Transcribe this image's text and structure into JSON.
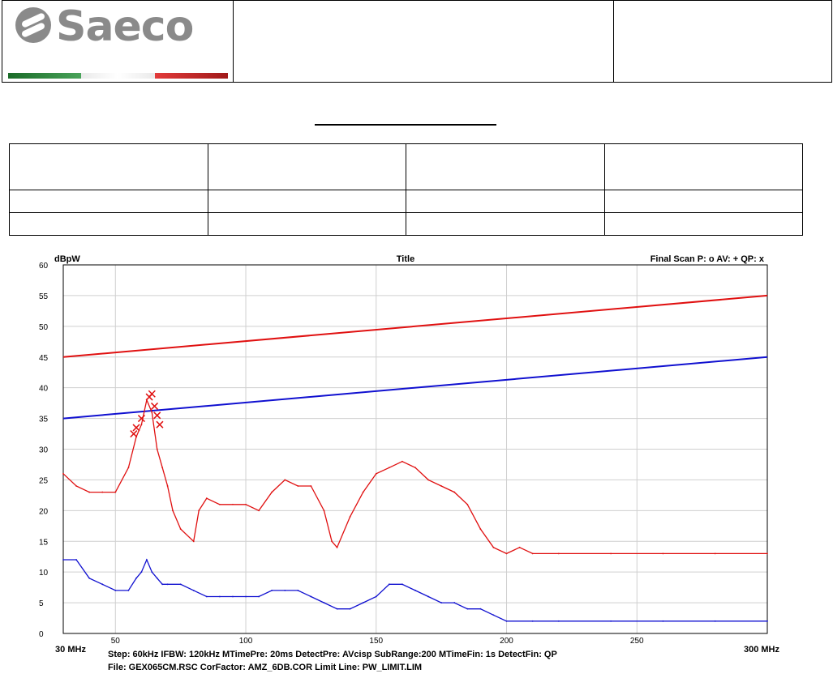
{
  "header": {
    "logo_text": "Saeco",
    "flag_colors": [
      "#2e8b3f",
      "#ffffff",
      "#d42a2a"
    ]
  },
  "info_table": {
    "rows": [
      [
        "",
        "",
        "",
        ""
      ],
      [
        "",
        "",
        "",
        ""
      ],
      [
        "",
        "",
        "",
        ""
      ]
    ]
  },
  "chart_data": {
    "type": "line",
    "title": "Title",
    "ylabel": "dBpW",
    "legend_text": "Final Scan P: o  AV: +  QP: x",
    "xlim": [
      30,
      300
    ],
    "ylim": [
      0,
      60
    ],
    "x_tick_labels": [
      {
        "value": 30,
        "label": "30 MHz"
      },
      {
        "value": 50,
        "label": "50"
      },
      {
        "value": 100,
        "label": "100"
      },
      {
        "value": 150,
        "label": "150"
      },
      {
        "value": 200,
        "label": "200"
      },
      {
        "value": 250,
        "label": "250"
      },
      {
        "value": 300,
        "label": "300 MHz"
      }
    ],
    "y_ticks": [
      0,
      5,
      10,
      15,
      20,
      25,
      30,
      35,
      40,
      45,
      50,
      55,
      60
    ],
    "grid": true,
    "footer_lines": [
      "Step: 60kHz    IFBW: 120kHz    MTimePre: 20ms    DetectPre: AVcisp    SubRange:200    MTimeFin:   1s    DetectFin: QP",
      "File: GEX065CM.RSC  CorFactor: AMZ_6DB.COR      Limit Line: PW_LIMIT.LIM"
    ],
    "limit_lines": [
      {
        "color": "#e01010",
        "x": [
          30,
          300
        ],
        "y": [
          45,
          55
        ]
      },
      {
        "color": "#1010d0",
        "x": [
          30,
          300
        ],
        "y": [
          35,
          45
        ]
      }
    ],
    "series": [
      {
        "color": "#e01010",
        "x": [
          30,
          35,
          40,
          45,
          50,
          55,
          58,
          60,
          62,
          64,
          66,
          68,
          70,
          72,
          75,
          80,
          82,
          85,
          90,
          95,
          100,
          105,
          110,
          115,
          120,
          125,
          130,
          133,
          135,
          140,
          145,
          150,
          155,
          160,
          165,
          170,
          175,
          180,
          185,
          190,
          195,
          200,
          205,
          210,
          220,
          240,
          260,
          280,
          300
        ],
        "y": [
          26,
          24,
          23,
          23,
          23,
          27,
          32,
          34,
          38,
          36,
          30,
          27,
          24,
          20,
          17,
          15,
          20,
          22,
          21,
          21,
          21,
          20,
          23,
          25,
          24,
          24,
          20,
          15,
          14,
          19,
          23,
          26,
          27,
          28,
          27,
          25,
          24,
          23,
          21,
          17,
          14,
          13,
          14,
          13,
          13,
          13,
          13,
          13,
          13
        ]
      },
      {
        "color": "#1010d0",
        "x": [
          30,
          35,
          40,
          45,
          50,
          55,
          58,
          60,
          62,
          64,
          66,
          68,
          70,
          75,
          80,
          85,
          90,
          95,
          100,
          105,
          110,
          115,
          120,
          125,
          130,
          135,
          140,
          145,
          150,
          155,
          160,
          165,
          170,
          175,
          180,
          185,
          190,
          195,
          200,
          210,
          220,
          240,
          260,
          280,
          300
        ],
        "y": [
          12,
          12,
          9,
          8,
          7,
          7,
          9,
          10,
          12,
          10,
          9,
          8,
          8,
          8,
          7,
          6,
          6,
          6,
          6,
          6,
          7,
          7,
          7,
          6,
          5,
          4,
          4,
          5,
          6,
          8,
          8,
          7,
          6,
          5,
          5,
          4,
          4,
          3,
          2,
          2,
          2,
          2,
          2,
          2,
          2
        ]
      }
    ],
    "markers": [
      {
        "x": 57,
        "y": 32.5
      },
      {
        "x": 58,
        "y": 33.5
      },
      {
        "x": 60,
        "y": 35
      },
      {
        "x": 63,
        "y": 38.5
      },
      {
        "x": 64,
        "y": 39
      },
      {
        "x": 65,
        "y": 37
      },
      {
        "x": 66,
        "y": 35.5
      },
      {
        "x": 67,
        "y": 34
      }
    ]
  }
}
